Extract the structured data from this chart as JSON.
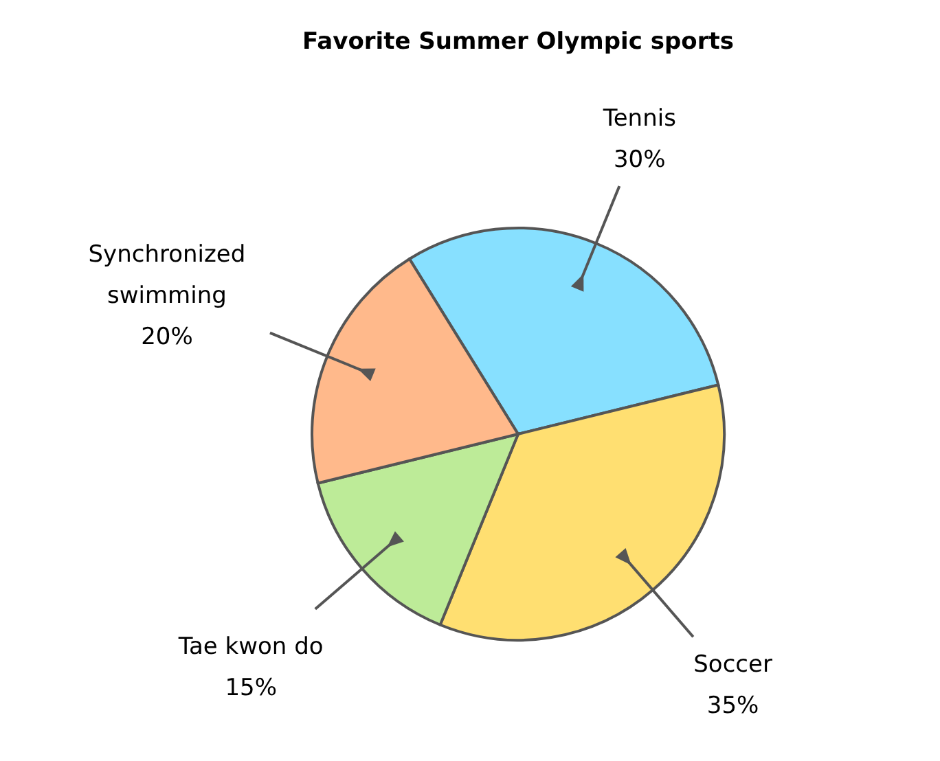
{
  "chart_data": {
    "type": "pie",
    "title": "Favorite Summer Olympic sports",
    "categories": [
      "Tennis",
      "Soccer",
      "Tae kwon do",
      "Synchronized swimming"
    ],
    "values": [
      30,
      35,
      15,
      20
    ],
    "value_labels": [
      "30%",
      "35%",
      "15%",
      "20%"
    ],
    "colors": [
      "#87e0ff",
      "#ffdf71",
      "#bdeb98",
      "#ffb98b"
    ]
  }
}
